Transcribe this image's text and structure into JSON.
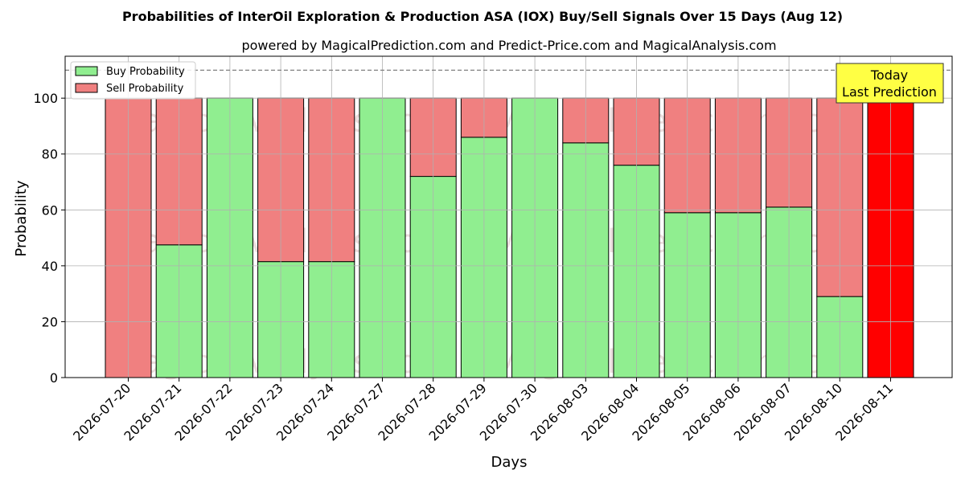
{
  "chart_data": {
    "type": "bar",
    "stacked": true,
    "title": "Probabilities of InterOil Exploration & Production ASA (IOX) Buy/Sell Signals Over 15 Days (Aug 12)",
    "subtitle": "powered by MagicalPrediction.com and Predict-Price.com and MagicalAnalysis.com",
    "xlabel": "Days",
    "ylabel": "Probability",
    "ylim": [
      0,
      115
    ],
    "yticks": [
      0,
      20,
      40,
      60,
      80,
      100
    ],
    "grid": true,
    "legend_position": "top-left",
    "reference_line": 110,
    "categories": [
      "2026-07-20",
      "2026-07-21",
      "2026-07-22",
      "2026-07-23",
      "2026-07-24",
      "2026-07-27",
      "2026-07-28",
      "2026-07-29",
      "2026-07-30",
      "2026-08-03",
      "2026-08-04",
      "2026-08-05",
      "2026-08-06",
      "2026-08-07",
      "2026-08-10",
      "2026-08-11"
    ],
    "series": [
      {
        "name": "Buy Probability",
        "color": "#90ee90",
        "values": [
          0,
          47.5,
          100,
          41.5,
          41.5,
          100,
          72,
          86,
          100,
          84,
          76,
          59,
          59,
          61,
          29,
          0
        ]
      },
      {
        "name": "Sell Probability",
        "color": "#f08080",
        "values": [
          100,
          52.5,
          0,
          58.5,
          58.5,
          0,
          28,
          14,
          0,
          16,
          24,
          41,
          41,
          39,
          71,
          100
        ]
      }
    ],
    "highlight": {
      "category": "2026-08-11",
      "color": "#ff0000"
    },
    "annotation": {
      "line1": "Today",
      "line2": "Last Prediction"
    },
    "watermarks": [
      "MagicalAnalysis.com",
      "MagicalPrediction.com"
    ]
  }
}
